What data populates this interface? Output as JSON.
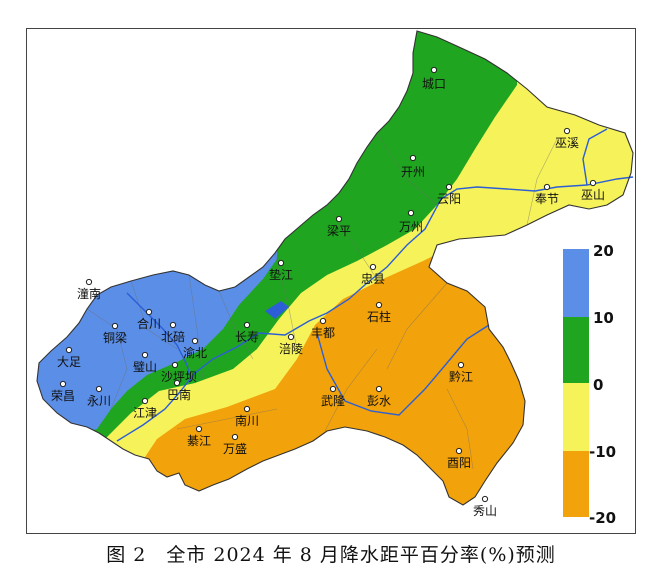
{
  "caption": "图 2　全市 2024 年 8 月降水距平百分率(%)预测",
  "colors": {
    "above_10": "#5b8ee6",
    "0_to_10": "#1fa51f",
    "minus10_to_0": "#f6f25a",
    "below_minus10": "#f2a20a",
    "river": "#2c5fd6"
  },
  "legend": {
    "ticks": [
      "20",
      "10",
      "0",
      "-10",
      "-20"
    ],
    "bins": [
      {
        "range": [
          10,
          20
        ],
        "color": "#5b8ee6"
      },
      {
        "range": [
          0,
          10
        ],
        "color": "#1fa51f"
      },
      {
        "range": [
          -10,
          0
        ],
        "color": "#f6f25a"
      },
      {
        "range": [
          -20,
          -10
        ],
        "color": "#f2a20a"
      }
    ]
  },
  "cities": [
    {
      "id": "chengkou",
      "name": "城口"
    },
    {
      "id": "wuxi",
      "name": "巫溪"
    },
    {
      "id": "kaizhou",
      "name": "开州"
    },
    {
      "id": "fengjie",
      "name": "奉节"
    },
    {
      "id": "wushan",
      "name": "巫山"
    },
    {
      "id": "yunyang",
      "name": "云阳"
    },
    {
      "id": "wanzhou",
      "name": "万州"
    },
    {
      "id": "liangping",
      "name": "梁平"
    },
    {
      "id": "dianjiang",
      "name": "垫江"
    },
    {
      "id": "zhongxian",
      "name": "忠县"
    },
    {
      "id": "shizhu",
      "name": "石柱"
    },
    {
      "id": "fengdu",
      "name": "丰都"
    },
    {
      "id": "fuling",
      "name": "涪陵"
    },
    {
      "id": "changshou",
      "name": "长寿"
    },
    {
      "id": "tongnan",
      "name": "潼南"
    },
    {
      "id": "hechuan",
      "name": "合川"
    },
    {
      "id": "tongliang",
      "name": "铜梁"
    },
    {
      "id": "beibei",
      "name": "北碚"
    },
    {
      "id": "yubei",
      "name": "渝北"
    },
    {
      "id": "dazu",
      "name": "大足"
    },
    {
      "id": "bishan",
      "name": "璧山"
    },
    {
      "id": "shapingba",
      "name": "沙坪坝"
    },
    {
      "id": "rongchang",
      "name": "荣昌"
    },
    {
      "id": "yongchuan",
      "name": "永川"
    },
    {
      "id": "jiangjin",
      "name": "江津"
    },
    {
      "id": "banan",
      "name": "巴南"
    },
    {
      "id": "qijiang",
      "name": "綦江"
    },
    {
      "id": "nanchuan",
      "name": "南川"
    },
    {
      "id": "wansheng",
      "name": "万盛"
    },
    {
      "id": "wulong",
      "name": "武隆"
    },
    {
      "id": "pengshui",
      "name": "彭水"
    },
    {
      "id": "qianjiang",
      "name": "黔江"
    },
    {
      "id": "youyang",
      "name": "酉阳"
    },
    {
      "id": "xiushan",
      "name": "秀山"
    }
  ]
}
